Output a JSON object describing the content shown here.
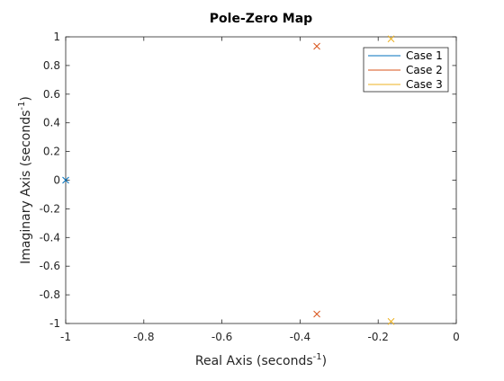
{
  "chart_data": {
    "type": "scatter",
    "title": "Pole-Zero Map",
    "xlabel": "Real Axis (seconds",
    "ylabel": "Imaginary Axis (seconds",
    "axis_unit_superscript": "-1",
    "xlim": [
      -1,
      0
    ],
    "ylim": [
      -1,
      1
    ],
    "xticks": [
      -1,
      -0.8,
      -0.6,
      -0.4,
      -0.2,
      0
    ],
    "xtick_labels": [
      "-1",
      "-0.8",
      "-0.6",
      "-0.4",
      "-0.2",
      "0"
    ],
    "yticks": [
      1,
      0.8,
      0.6,
      0.4,
      0.2,
      0,
      -0.2,
      -0.4,
      -0.6,
      -0.8,
      -1
    ],
    "ytick_labels": [
      "1",
      "0.8",
      "0.6",
      "0.4",
      "0.2",
      "0",
      "-0.2",
      "-0.4",
      "-0.6",
      "-0.8",
      "-1"
    ],
    "grid": false,
    "legend_position": "top-right",
    "marker": "x",
    "series": [
      {
        "name": "Case 1",
        "color": "#0072BD",
        "points": [
          {
            "x": -1.0,
            "y": 0.0
          }
        ]
      },
      {
        "name": "Case 2",
        "color": "#D95319",
        "points": [
          {
            "x": -0.357,
            "y": 0.934
          },
          {
            "x": -0.357,
            "y": -0.934
          }
        ]
      },
      {
        "name": "Case 3",
        "color": "#EDB120",
        "points": [
          {
            "x": -0.167,
            "y": 0.986
          },
          {
            "x": -0.167,
            "y": -0.986
          }
        ]
      }
    ]
  }
}
